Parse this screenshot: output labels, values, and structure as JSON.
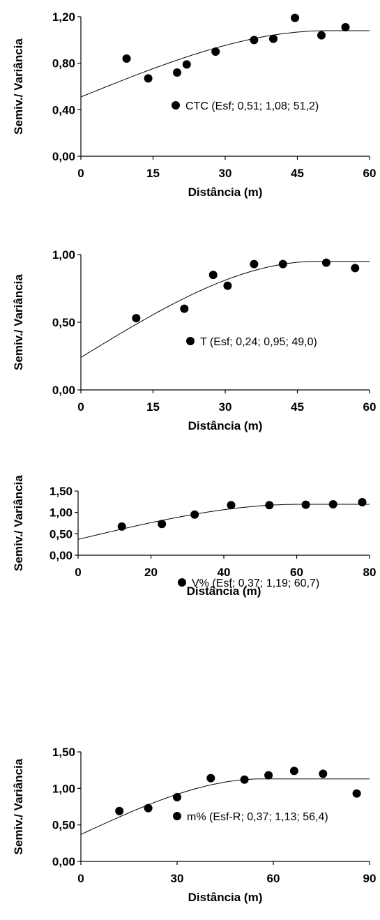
{
  "chart_data": [
    {
      "type": "scatter",
      "xlabel": "Distância (m)",
      "ylabel": "Semiv./ Variância",
      "xlim": [
        0,
        60
      ],
      "ylim": [
        0,
        1.2
      ],
      "xticks": [
        "0",
        "15",
        "30",
        "45",
        "60"
      ],
      "yticks": [
        "0,00",
        "0,40",
        "0,80",
        "1,20"
      ],
      "legend": "CTC (Esf; 0,51; 1,08; 51,2)",
      "model": {
        "type": "spherical",
        "nugget": 0.51,
        "sill": 1.08,
        "range": 51.2
      },
      "points": [
        {
          "x": 9.5,
          "y": 0.84
        },
        {
          "x": 14,
          "y": 0.67
        },
        {
          "x": 20,
          "y": 0.72
        },
        {
          "x": 22,
          "y": 0.79
        },
        {
          "x": 28,
          "y": 0.9
        },
        {
          "x": 36,
          "y": 1.0
        },
        {
          "x": 40,
          "y": 1.01
        },
        {
          "x": 44.5,
          "y": 1.19
        },
        {
          "x": 50,
          "y": 1.04
        },
        {
          "x": 55,
          "y": 1.11
        }
      ]
    },
    {
      "type": "scatter",
      "xlabel": "Distância (m)",
      "ylabel": "Semiv./ Variância",
      "xlim": [
        0,
        60
      ],
      "ylim": [
        0,
        1.0
      ],
      "xticks": [
        "0",
        "15",
        "30",
        "45",
        "60"
      ],
      "yticks": [
        "0,00",
        "0,50",
        "1,00"
      ],
      "legend": "T (Esf; 0,24; 0,95; 49,0)",
      "model": {
        "type": "spherical",
        "nugget": 0.24,
        "sill": 0.95,
        "range": 49.0
      },
      "points": [
        {
          "x": 11.5,
          "y": 0.53
        },
        {
          "x": 21.5,
          "y": 0.6
        },
        {
          "x": 27.5,
          "y": 0.85
        },
        {
          "x": 30.5,
          "y": 0.77
        },
        {
          "x": 36,
          "y": 0.93
        },
        {
          "x": 42,
          "y": 0.93
        },
        {
          "x": 51,
          "y": 0.94
        },
        {
          "x": 57,
          "y": 0.9
        }
      ]
    },
    {
      "type": "scatter",
      "xlabel": "Distância (m)",
      "ylabel": "Semiv./ Variância",
      "xlim": [
        0,
        80
      ],
      "ylim": [
        0,
        1.5
      ],
      "xticks": [
        "0",
        "20",
        "40",
        "60",
        "80"
      ],
      "yticks": [
        "0,00",
        "0,50",
        "1,00",
        "1,50"
      ],
      "legend": "V% (Esf; 0,37; 1,19; 60,7)",
      "model": {
        "type": "spherical",
        "nugget": 0.37,
        "sill": 1.19,
        "range": 60.7
      },
      "points": [
        {
          "x": 12,
          "y": 0.67
        },
        {
          "x": 23,
          "y": 0.73
        },
        {
          "x": 32,
          "y": 0.95
        },
        {
          "x": 42,
          "y": 1.17
        },
        {
          "x": 52.5,
          "y": 1.17
        },
        {
          "x": 62.5,
          "y": 1.18
        },
        {
          "x": 70,
          "y": 1.19
        },
        {
          "x": 78,
          "y": 1.24
        }
      ]
    },
    {
      "type": "scatter",
      "xlabel": "Distância (m)",
      "ylabel": "Semiv./ Variância",
      "xlim": [
        0,
        90
      ],
      "ylim": [
        0,
        1.5
      ],
      "xticks": [
        "0",
        "30",
        "60",
        "90"
      ],
      "yticks": [
        "0,00",
        "0,50",
        "1,00",
        "1,50"
      ],
      "legend": "m% (Esf-R; 0,37; 1,13; 56,4)",
      "model": {
        "type": "spherical",
        "nugget": 0.37,
        "sill": 1.13,
        "range": 56.4
      },
      "points": [
        {
          "x": 12,
          "y": 0.69
        },
        {
          "x": 21,
          "y": 0.73
        },
        {
          "x": 30,
          "y": 0.88
        },
        {
          "x": 40.5,
          "y": 1.14
        },
        {
          "x": 51,
          "y": 1.12
        },
        {
          "x": 58.5,
          "y": 1.18
        },
        {
          "x": 66.5,
          "y": 1.24
        },
        {
          "x": 75.5,
          "y": 1.2
        },
        {
          "x": 86,
          "y": 0.93
        }
      ]
    }
  ]
}
